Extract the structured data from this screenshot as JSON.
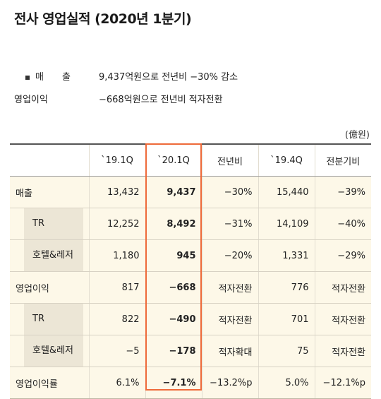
{
  "title": "전사 영업실적 (2020년 1분기)",
  "summary": [
    {
      "label": "매　　출",
      "value": "9,437억원으로 전년비  −30% 감소"
    },
    {
      "label": "영업이익",
      "value": "−668억원으로  전년비 적자전환"
    }
  ],
  "unit": "(億원)",
  "table": {
    "headers": [
      "",
      "`19.1Q",
      "`20.1Q",
      "전년비",
      "`19.4Q",
      "전분기비"
    ],
    "rows": [
      {
        "label": "매출",
        "values": [
          "13,432",
          "9,437",
          "−30%",
          "15,440",
          "−39%"
        ]
      },
      {
        "label": "TR",
        "values": [
          "12,252",
          "8,492",
          "−31%",
          "14,109",
          "−40%"
        ]
      },
      {
        "label": "호텔&레저",
        "values": [
          "1,180",
          "945",
          "−20%",
          "1,331",
          "−29%"
        ]
      },
      {
        "label": "영업이익",
        "values": [
          "817",
          "−668",
          "적자전환",
          "776",
          "적자전환"
        ]
      },
      {
        "label": "TR",
        "values": [
          "822",
          "−490",
          "적자전환",
          "701",
          "적자전환"
        ]
      },
      {
        "label": "호텔&레저",
        "values": [
          "−5",
          "−178",
          "적자확대",
          "75",
          "적자전환"
        ]
      },
      {
        "label": "영업이익률",
        "values": [
          "6.1%",
          "−7.1%",
          "−13.2%p",
          "5.0%",
          "−12.1%p"
        ]
      }
    ]
  },
  "colors": {
    "highlight": "#ee6a3a",
    "cell_bg": "#fdf8e8",
    "sub_label_bg": "#ece6d6"
  }
}
